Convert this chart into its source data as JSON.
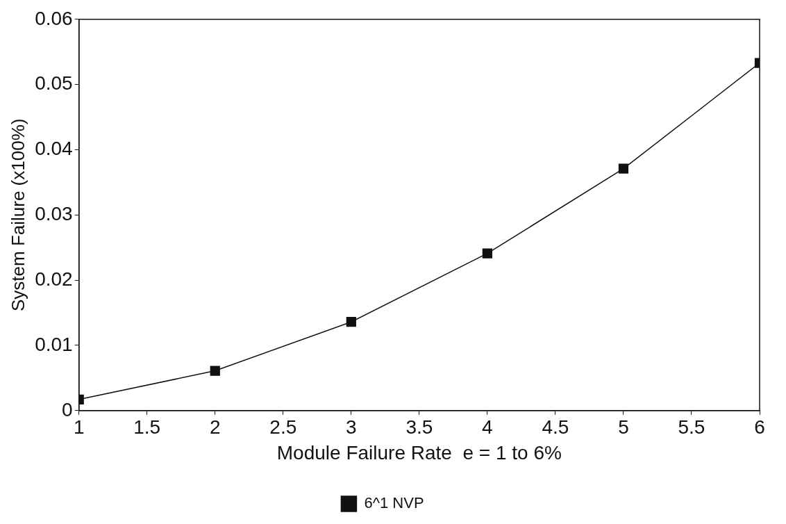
{
  "chart_data": {
    "type": "line",
    "xlabel": "Module Failure Rate  e = 1 to 6%",
    "ylabel": "System Failure (x100%)",
    "x": [
      1,
      2,
      3,
      4,
      5,
      6
    ],
    "series": [
      {
        "name": "6^1 NVP",
        "color": "#111111",
        "values": [
          0.0017,
          0.0061,
          0.0136,
          0.0241,
          0.0371,
          0.0533
        ]
      }
    ],
    "xlim": [
      1,
      6
    ],
    "xticks": [
      1,
      1.5,
      2,
      2.5,
      3,
      3.5,
      4,
      4.5,
      5,
      5.5,
      6
    ],
    "ylim": [
      0,
      0.06
    ],
    "yticks": [
      0,
      0.01,
      0.02,
      0.03,
      0.04,
      0.05,
      0.06
    ],
    "marker": "square",
    "line_style": "solid",
    "legend": "bottom",
    "grid": false
  }
}
